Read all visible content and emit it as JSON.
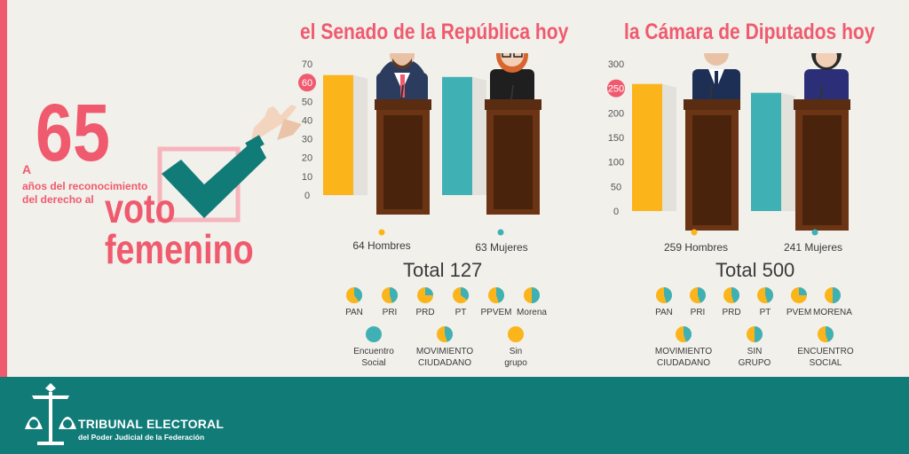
{
  "headline": {
    "prefix": "A",
    "number": "65",
    "subtitle_line1": "años del reconocimiento",
    "subtitle_line2": "del derecho al",
    "word1": "voto",
    "word2": "femenino"
  },
  "colors": {
    "men": "#fbb41a",
    "women": "#3fb1b5",
    "accent": "#f05a6e",
    "footer": "#117b78",
    "podium": "#6b3515"
  },
  "footer": {
    "line1": "TRIBUNAL ELECTORAL",
    "line2": "del Poder Judicial de la Federación"
  },
  "senate": {
    "title": "el Senado de la República hoy",
    "men_label": "64 Hombres",
    "women_label": "63 Mujeres",
    "total_label": "Total 127",
    "legend": [
      {
        "name": "PAN",
        "women_share": 0.4
      },
      {
        "name": "PRI",
        "women_share": 0.45
      },
      {
        "name": "PRD",
        "women_share": 0.25
      },
      {
        "name": "PT",
        "women_share": 0.35
      },
      {
        "name": "PPVEM",
        "women_share": 0.45
      },
      {
        "name": "Morena",
        "women_share": 0.5
      },
      {
        "name": "Encuentro\nSocial",
        "women_share": 1.0
      },
      {
        "name": "MOVIMIENTO\nCIUDADANO",
        "women_share": 0.45
      },
      {
        "name": "Sin\ngrupo",
        "women_share": 0.0
      }
    ]
  },
  "chamber": {
    "title": "la Cámara de Diputados hoy",
    "men_label": "259 Hombres",
    "women_label": "241 Mujeres",
    "total_label": "Total 500",
    "legend": [
      {
        "name": "PAN",
        "women_share": 0.45
      },
      {
        "name": "PRI",
        "women_share": 0.45
      },
      {
        "name": "PRD",
        "women_share": 0.45
      },
      {
        "name": "PT",
        "women_share": 0.45
      },
      {
        "name": "PVEM",
        "women_share": 0.25
      },
      {
        "name": "MORENA",
        "women_share": 0.5
      },
      {
        "name": "MOVIMIENTO\nCIUDADANO",
        "women_share": 0.45
      },
      {
        "name": "SIN\nGRUPO",
        "women_share": 0.5
      },
      {
        "name": "ENCUENTRO\nSOCIAL",
        "women_share": 0.45
      }
    ]
  },
  "chart_data": [
    {
      "type": "bar",
      "title": "el Senado de la República hoy",
      "categories": [
        "Hombres",
        "Mujeres"
      ],
      "values": [
        64,
        63
      ],
      "ylim": [
        0,
        70
      ],
      "yticks": [
        0,
        10,
        20,
        30,
        40,
        50,
        60,
        70
      ],
      "highlight_tick": 60
    },
    {
      "type": "bar",
      "title": "la Cámara de Diputados hoy",
      "categories": [
        "Hombres",
        "Mujeres"
      ],
      "values": [
        259,
        241
      ],
      "ylim": [
        0,
        300
      ],
      "yticks": [
        0,
        50,
        100,
        150,
        200,
        250,
        300
      ],
      "highlight_tick": 250
    }
  ]
}
